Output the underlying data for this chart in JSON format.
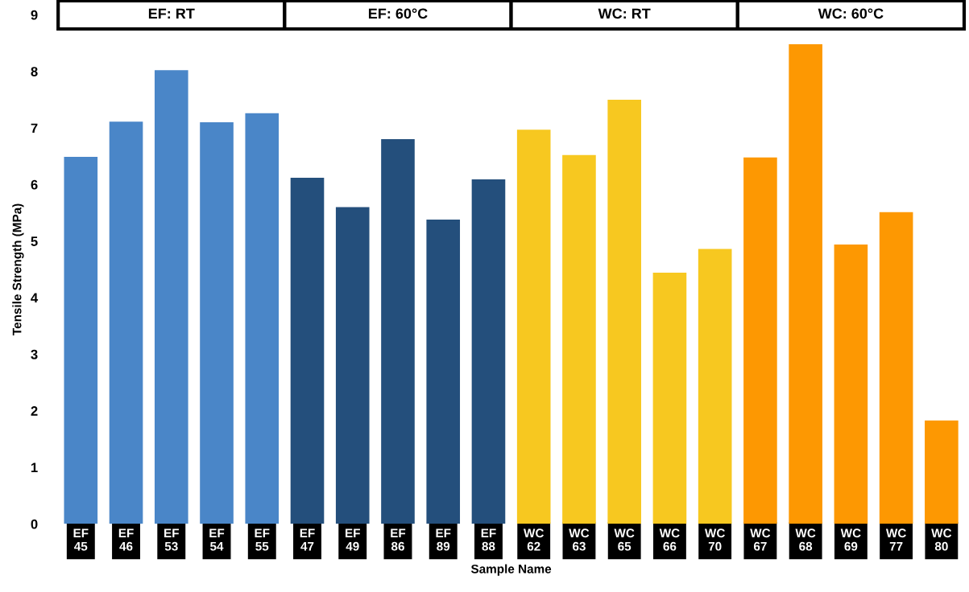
{
  "chart_data": {
    "type": "bar",
    "xlabel": "Sample Name",
    "ylabel": "Tensile Strength (MPa)",
    "categories": [
      "EF\n45",
      "EF\n46",
      "EF\n53",
      "EF\n54",
      "EF\n55",
      "EF\n47",
      "EF\n49",
      "EF\n86",
      "EF\n89",
      "EF\n88",
      "WC\n62",
      "WC\n63",
      "WC\n65",
      "WC\n66",
      "WC\n70",
      "WC\n67",
      "WC\n68",
      "WC\n69",
      "WC\n77",
      "WC\n80"
    ],
    "values": [
      6.49,
      7.11,
      8.02,
      7.1,
      7.26,
      6.12,
      5.6,
      6.8,
      5.38,
      6.09,
      6.97,
      6.52,
      7.5,
      4.44,
      4.86,
      6.48,
      8.48,
      4.94,
      5.51,
      1.83
    ],
    "colors": [
      "#4a86c8",
      "#4a86c8",
      "#4a86c8",
      "#4a86c8",
      "#4a86c8",
      "#244f7c",
      "#244f7c",
      "#244f7c",
      "#244f7c",
      "#244f7c",
      "#f7c820",
      "#f7c820",
      "#f7c820",
      "#f7c820",
      "#f7c820",
      "#fd9802",
      "#fd9802",
      "#fd9802",
      "#fd9802",
      "#fd9802"
    ],
    "annotations": [
      "EF: RT",
      "EF: 60°C",
      "WC: RT",
      "WC: 60°C"
    ],
    "ylim": [
      0,
      9
    ],
    "yticks": [
      0,
      1,
      2,
      3,
      4,
      5,
      6,
      7,
      8,
      9
    ],
    "grid": false,
    "legend": false
  }
}
